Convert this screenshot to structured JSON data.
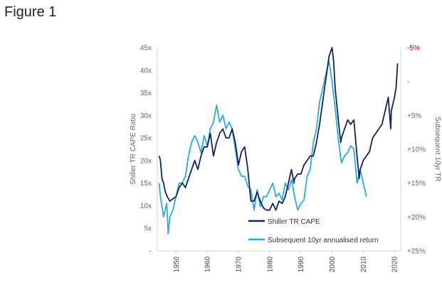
{
  "caption": "Figure 1",
  "chart_data": {
    "type": "line",
    "title": "",
    "xlabel": "",
    "ylabel": "Shiller TR CAPE Ratio",
    "y2label": "Subsequent 10yr TR",
    "xlim": [
      1944,
      2022
    ],
    "ylim": [
      0,
      45
    ],
    "y2lim": [
      -5,
      25
    ],
    "y2_inverted": true,
    "grid": false,
    "legend_position": "bottom-right",
    "x_ticks": [
      "1950",
      "1960",
      "1970",
      "1980",
      "1990",
      "2000",
      "2010",
      "2020"
    ],
    "y_ticks": [
      "-",
      "5x",
      "10x",
      "15x",
      "20x",
      "25x",
      "30x",
      "35x",
      "40x",
      "45x"
    ],
    "y2_ticks": [
      "-5%",
      "-",
      "+5%",
      "+10%",
      "+15%",
      "+20%",
      "+25%"
    ],
    "series": [
      {
        "name": "Shiller TR CAPE",
        "axis": "left",
        "color": "#14235a",
        "x": [
          1944.6,
          1945,
          1945.5,
          1946,
          1946.6,
          1947.2,
          1948,
          1949,
          1950,
          1951,
          1952,
          1953,
          1954,
          1955,
          1956,
          1957,
          1958,
          1959,
          1960,
          1961,
          1962,
          1963,
          1964,
          1965,
          1966,
          1967,
          1968,
          1969,
          1970,
          1971,
          1972,
          1973,
          1974,
          1975,
          1976,
          1977,
          1978,
          1979,
          1980,
          1981,
          1982,
          1983,
          1984,
          1985,
          1986,
          1987,
          1987.8,
          1988,
          1989,
          1990,
          1991,
          1992,
          1993,
          1994,
          1995,
          1996,
          1997,
          1998,
          1999,
          2000,
          2000.5,
          2001,
          2002,
          2002.8,
          2003,
          2004,
          2005,
          2006,
          2007,
          2008,
          2008.7,
          2009,
          2010,
          2011,
          2012,
          2013,
          2014,
          2015,
          2016,
          2017,
          2018,
          2018.8,
          2019,
          2020,
          2020.5,
          2021
        ],
        "values": [
          21,
          20,
          16,
          15,
          13,
          12,
          11,
          11.5,
          12,
          14,
          15,
          14,
          16,
          18,
          20,
          18,
          21,
          23,
          23,
          26,
          21,
          24,
          26,
          27,
          25,
          25,
          27,
          24,
          19,
          22,
          23,
          18,
          11,
          11,
          13,
          11,
          9.5,
          9,
          9,
          10.5,
          9,
          11,
          10.5,
          12,
          15,
          18,
          15,
          16,
          17,
          17,
          19,
          20,
          21,
          21,
          24,
          28,
          33,
          38,
          43,
          45,
          42,
          36,
          29,
          24,
          25,
          27,
          29,
          28,
          29,
          21,
          16,
          18,
          20,
          21,
          22,
          25,
          26,
          27,
          28,
          31,
          34,
          27,
          31,
          34,
          36,
          41.5
        ]
      },
      {
        "name": "Subsequent 10yr annualised return",
        "axis": "right",
        "color": "#29abe2",
        "x": [
          1944.6,
          1945,
          1946,
          1947,
          1947.5,
          1948,
          1949,
          1950,
          1951,
          1952,
          1953,
          1954,
          1955,
          1956,
          1957,
          1958,
          1959,
          1960,
          1961,
          1962,
          1963,
          1964,
          1965,
          1966,
          1967,
          1968,
          1969,
          1970,
          1971,
          1972,
          1973,
          1974,
          1975,
          1976,
          1977,
          1978,
          1979,
          1980,
          1981,
          1982,
          1983,
          1984,
          1985,
          1986,
          1987,
          1988,
          1989,
          1990,
          1991,
          1992,
          1993,
          1994,
          1995,
          1996,
          1997,
          1998,
          1999,
          2000,
          2001,
          2002,
          2003,
          2004,
          2005,
          2006,
          2007,
          2008,
          2009,
          2010,
          2011
        ],
        "values": [
          15,
          17,
          20,
          18,
          22.5,
          20,
          19,
          17,
          15,
          15,
          14,
          11,
          9,
          8,
          9,
          10.5,
          8,
          9.5,
          7,
          6,
          3.5,
          6,
          5,
          7,
          6,
          7,
          10,
          13,
          14,
          14,
          15.5,
          16,
          19,
          16,
          18.5,
          17,
          17,
          16,
          15,
          17,
          16.5,
          17.5,
          15,
          16,
          14.5,
          17,
          19,
          18,
          17.5,
          14,
          13,
          9,
          7,
          3,
          1,
          -1,
          -3,
          0,
          4,
          8.5,
          12,
          11,
          10.5,
          9.5,
          10,
          15,
          13,
          15,
          17
        ]
      }
    ]
  }
}
